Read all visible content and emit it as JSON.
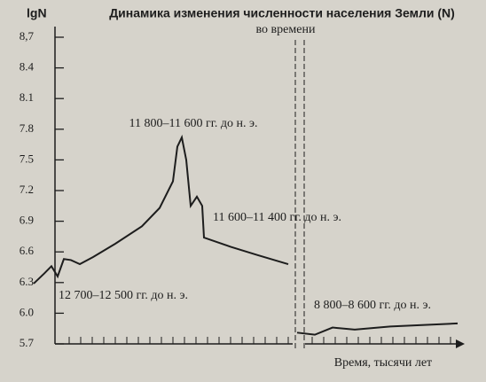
{
  "chart_data": {
    "type": "line",
    "title": "Динамика изменения численности населения Земли (N)",
    "subtitle": "во времени",
    "y_label": "lgN",
    "x_label": "Время, тысячи лет",
    "annotations": [
      "11 800–11 600 гг. до н. э.",
      "11 600–11 400 гг. до н. э.",
      "12 700–12 500 гг. до н. э.",
      "8 800–8 600 гг. до н. э."
    ],
    "ylim": [
      5.7,
      8.7
    ],
    "yticks": [
      5.7,
      {
        "value": 6,
        "label": "6.0"
      },
      6.3,
      6.6,
      6.9,
      7.2,
      7.5,
      7.8,
      8.1,
      8.4,
      {
        "value": 8.7,
        "label": "8,7"
      }
    ],
    "categories": [
      null,
      null,
      null,
      null,
      null,
      null,
      null,
      null,
      null,
      null,
      null,
      null,
      null,
      null,
      null,
      null,
      null,
      null,
      null,
      null,
      null,
      null,
      null,
      null,
      null,
      null,
      null,
      null,
      null
    ],
    "series": [
      {
        "color": "#1d1d1d",
        "values": [
          6.29,
          6.39,
          6.46,
          6.36,
          6.53,
          6.52,
          6.48,
          6.55,
          6.68,
          6.85,
          7.03,
          7.29,
          7.63,
          7.72,
          7.5,
          7.05,
          7.14,
          7.05,
          6.74,
          6.65,
          6.57,
          6.48,
          null,
          5.81,
          5.79,
          5.86,
          5.84,
          5.87,
          5.9
        ]
      }
    ]
  }
}
